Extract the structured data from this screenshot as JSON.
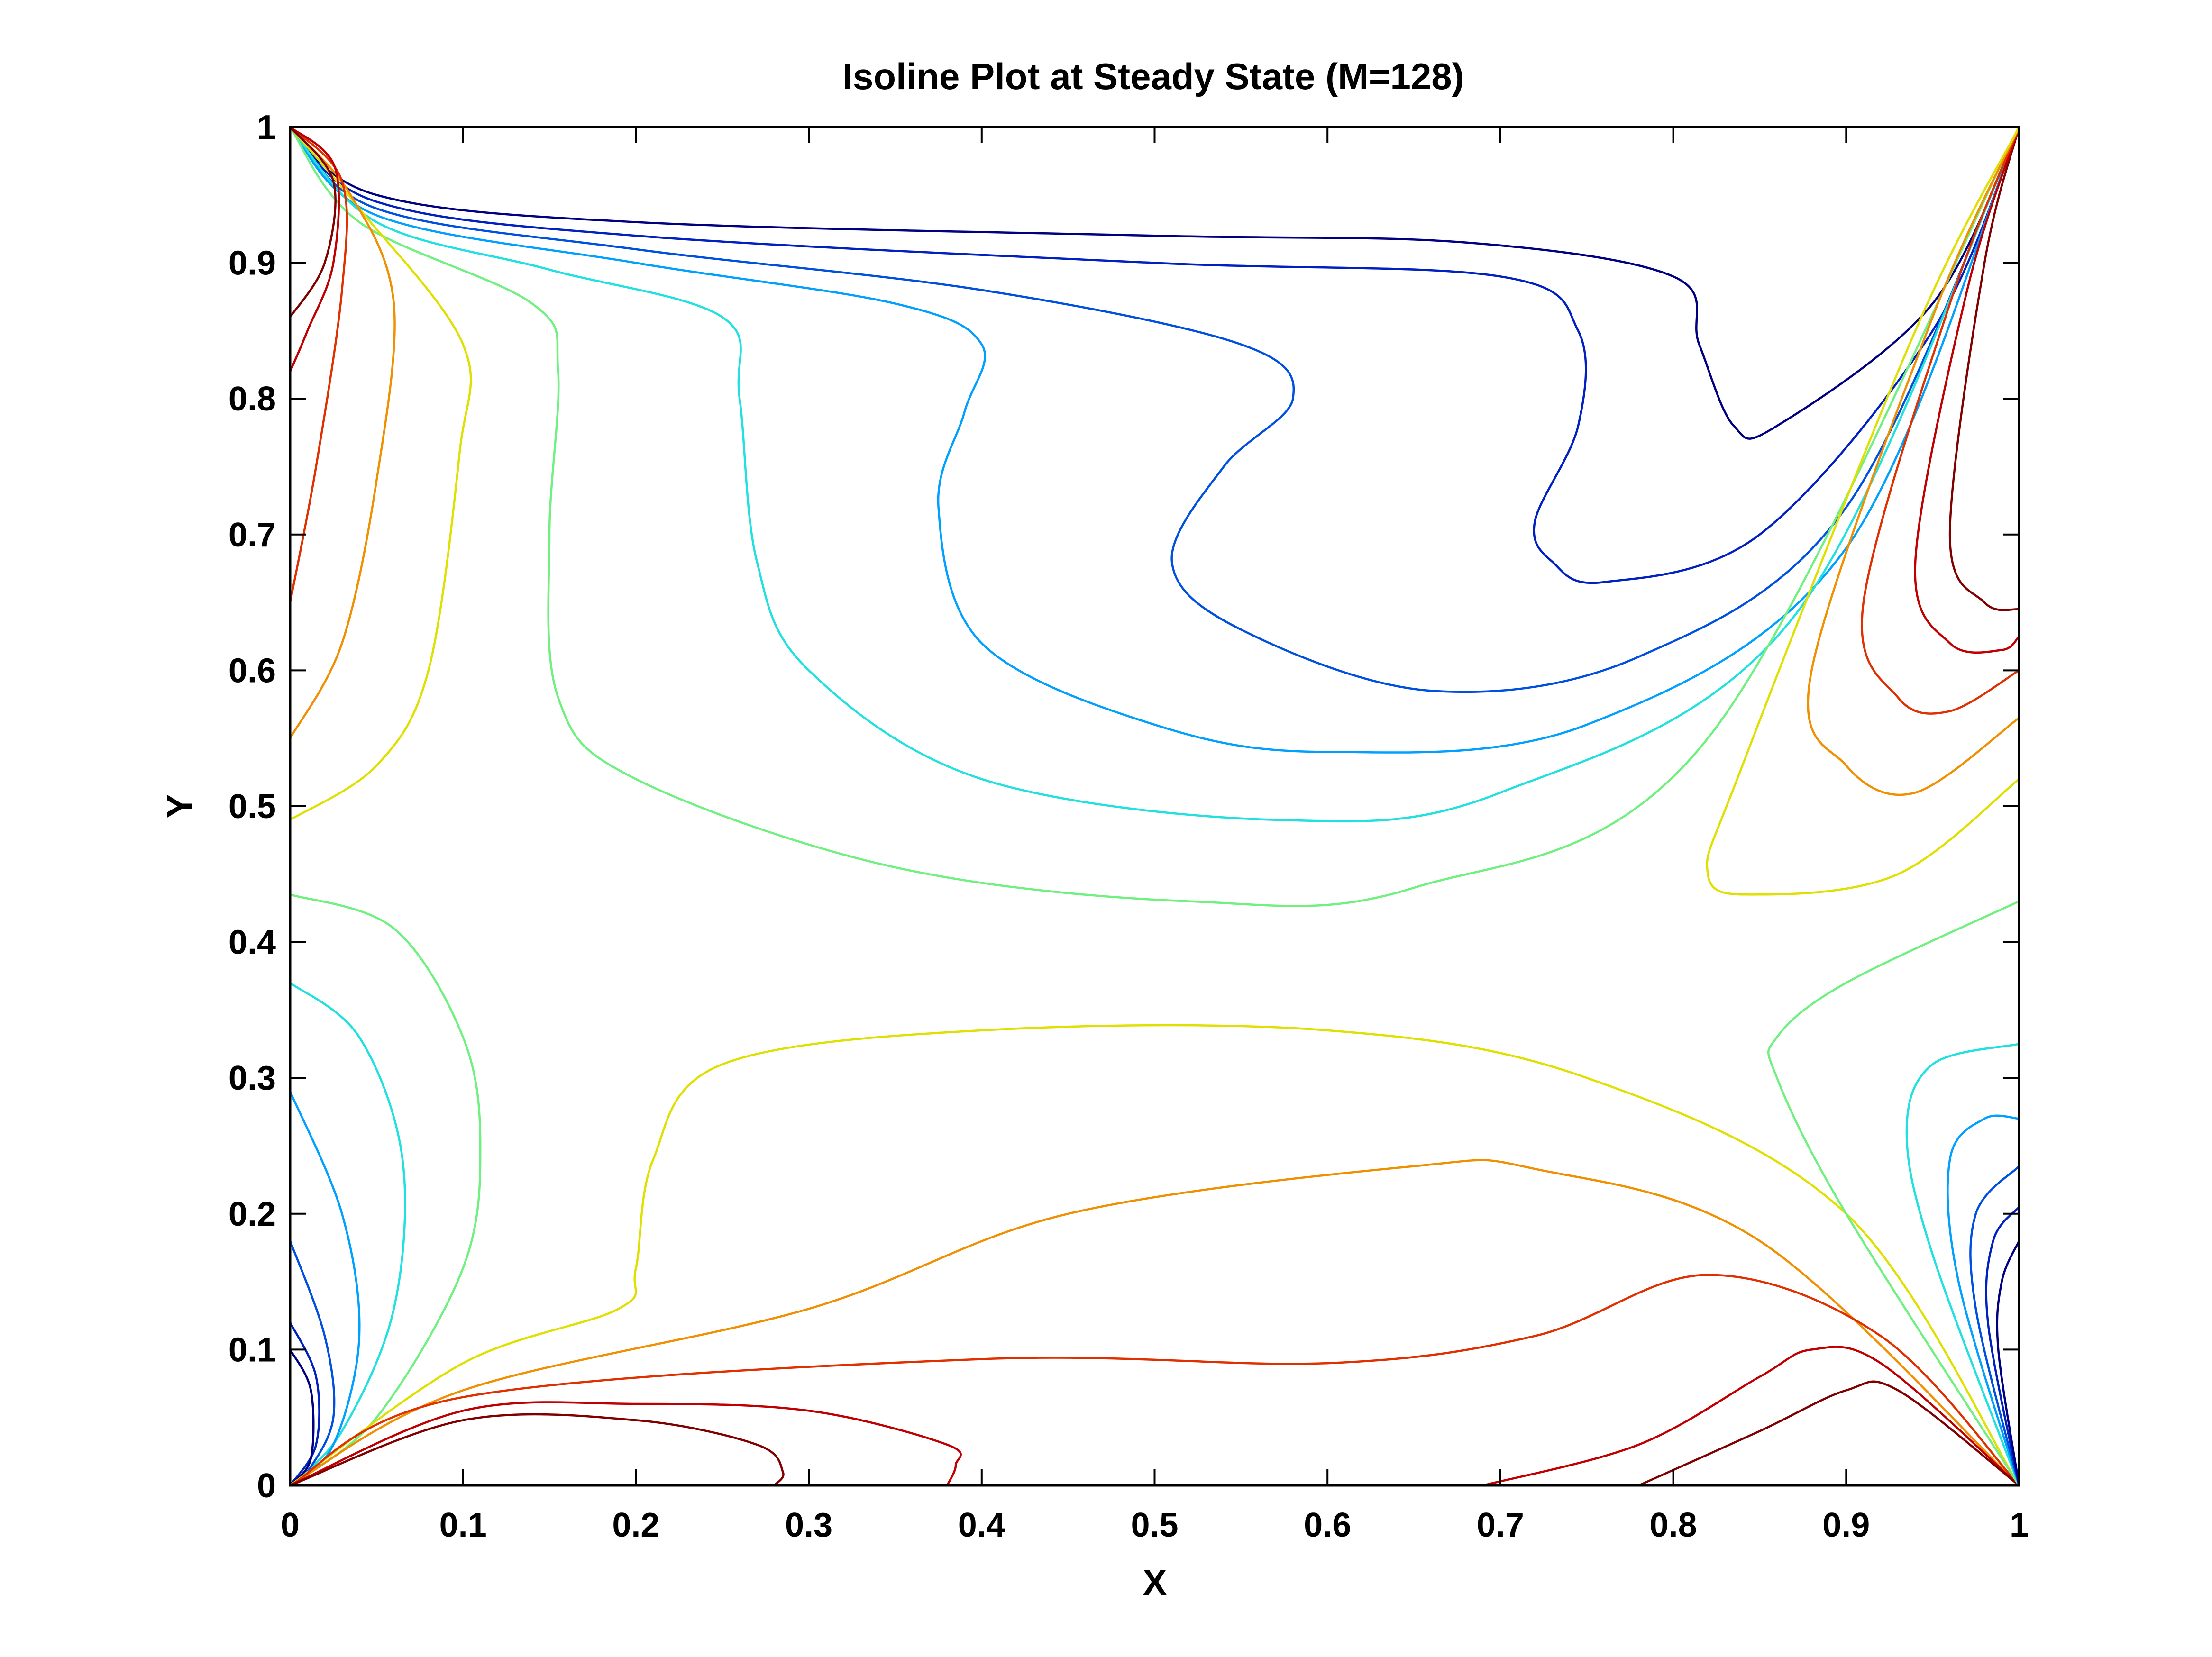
{
  "chart_data": {
    "type": "contour",
    "title": "Isoline Plot at Steady State (M=128)",
    "xlabel": "X",
    "ylabel": "Y",
    "xlim": [
      0,
      1
    ],
    "ylim": [
      0,
      1
    ],
    "xticks": [
      0,
      0.1,
      0.2,
      0.3,
      0.4,
      0.5,
      0.6,
      0.7,
      0.8,
      0.9,
      1
    ],
    "yticks": [
      0,
      0.1,
      0.2,
      0.3,
      0.4,
      0.5,
      0.6,
      0.7,
      0.8,
      0.9,
      1
    ],
    "xtick_labels": [
      "0",
      "0.1",
      "0.2",
      "0.3",
      "0.4",
      "0.5",
      "0.6",
      "0.7",
      "0.8",
      "0.9",
      "1"
    ],
    "ytick_labels": [
      "0",
      "0.1",
      "0.2",
      "0.3",
      "0.4",
      "0.5",
      "0.6",
      "0.7",
      "0.8",
      "0.9",
      "1"
    ],
    "grid": false,
    "colormap": "jet",
    "isolines": [
      {
        "color": "#000080",
        "points": [
          [
            0,
            1
          ],
          [
            0.05,
            0.95
          ],
          [
            0.2,
            0.93
          ],
          [
            0.5,
            0.92
          ],
          [
            0.68,
            0.915
          ],
          [
            0.8,
            0.89
          ],
          [
            0.815,
            0.84
          ],
          [
            0.835,
            0.78
          ],
          [
            0.86,
            0.78
          ],
          [
            0.95,
            0.87
          ],
          [
            1,
            1
          ]
        ]
      },
      {
        "color": "#0020c0",
        "points": [
          [
            0,
            1
          ],
          [
            0.05,
            0.945
          ],
          [
            0.2,
            0.92
          ],
          [
            0.5,
            0.9
          ],
          [
            0.7,
            0.89
          ],
          [
            0.745,
            0.85
          ],
          [
            0.745,
            0.78
          ],
          [
            0.72,
            0.71
          ],
          [
            0.73,
            0.68
          ],
          [
            0.76,
            0.665
          ],
          [
            0.85,
            0.7
          ],
          [
            0.95,
            0.85
          ],
          [
            1,
            1
          ]
        ]
      },
      {
        "color": "#0050e0",
        "points": [
          [
            0,
            1
          ],
          [
            0.05,
            0.94
          ],
          [
            0.2,
            0.91
          ],
          [
            0.4,
            0.88
          ],
          [
            0.55,
            0.84
          ],
          [
            0.58,
            0.8
          ],
          [
            0.54,
            0.75
          ],
          [
            0.51,
            0.68
          ],
          [
            0.55,
            0.63
          ],
          [
            0.66,
            0.585
          ],
          [
            0.78,
            0.61
          ],
          [
            0.9,
            0.72
          ],
          [
            1,
            1
          ]
        ]
      },
      {
        "color": "#00a0ff",
        "points": [
          [
            0,
            1
          ],
          [
            0.05,
            0.935
          ],
          [
            0.2,
            0.9
          ],
          [
            0.35,
            0.87
          ],
          [
            0.4,
            0.84
          ],
          [
            0.39,
            0.79
          ],
          [
            0.375,
            0.72
          ],
          [
            0.4,
            0.62
          ],
          [
            0.5,
            0.56
          ],
          [
            0.6,
            0.54
          ],
          [
            0.75,
            0.56
          ],
          [
            0.9,
            0.69
          ],
          [
            1,
            1
          ]
        ]
      },
      {
        "color": "#20e0e0",
        "points": [
          [
            0,
            1
          ],
          [
            0.05,
            0.93
          ],
          [
            0.15,
            0.895
          ],
          [
            0.25,
            0.86
          ],
          [
            0.26,
            0.8
          ],
          [
            0.27,
            0.68
          ],
          [
            0.3,
            0.6
          ],
          [
            0.4,
            0.52
          ],
          [
            0.57,
            0.49
          ],
          [
            0.7,
            0.51
          ],
          [
            0.87,
            0.64
          ],
          [
            1,
            1
          ]
        ]
      },
      {
        "color": "#70f080",
        "points": [
          [
            0,
            1
          ],
          [
            0.04,
            0.93
          ],
          [
            0.14,
            0.87
          ],
          [
            0.155,
            0.82
          ],
          [
            0.15,
            0.7
          ],
          [
            0.155,
            0.58
          ],
          [
            0.2,
            0.52
          ],
          [
            0.35,
            0.455
          ],
          [
            0.52,
            0.43
          ],
          [
            0.65,
            0.44
          ],
          [
            0.82,
            0.55
          ],
          [
            1,
            1
          ]
        ]
      },
      {
        "color": "#e0e000",
        "points": [
          [
            0,
            1
          ],
          [
            0.04,
            0.94
          ],
          [
            0.1,
            0.84
          ],
          [
            0.098,
            0.76
          ],
          [
            0.08,
            0.6
          ],
          [
            0.05,
            0.53
          ],
          [
            0,
            0.49
          ]
        ]
      },
      {
        "color": "#f09000",
        "points": [
          [
            0,
            1
          ],
          [
            0.035,
            0.95
          ],
          [
            0.06,
            0.87
          ],
          [
            0.05,
            0.74
          ],
          [
            0.03,
            0.62
          ],
          [
            0,
            0.55
          ]
        ]
      },
      {
        "color": "#e03000",
        "points": [
          [
            0,
            1
          ],
          [
            0.03,
            0.96
          ],
          [
            0.03,
            0.88
          ],
          [
            0.015,
            0.75
          ],
          [
            0,
            0.65
          ]
        ]
      },
      {
        "color": "#c00000",
        "points": [
          [
            0,
            1
          ],
          [
            0.026,
            0.97
          ],
          [
            0.025,
            0.9
          ],
          [
            0.01,
            0.85
          ],
          [
            0,
            0.82
          ]
        ]
      },
      {
        "color": "#800000",
        "points": [
          [
            0,
            1
          ],
          [
            0.025,
            0.96
          ],
          [
            0.02,
            0.9
          ],
          [
            0,
            0.86
          ]
        ]
      },
      {
        "color": "#800000",
        "points": [
          [
            1,
            1
          ],
          [
            0.98,
            0.9
          ],
          [
            0.96,
            0.7
          ],
          [
            0.98,
            0.65
          ],
          [
            1,
            0.645
          ]
        ]
      },
      {
        "color": "#c00000",
        "points": [
          [
            1,
            1
          ],
          [
            0.97,
            0.88
          ],
          [
            0.94,
            0.68
          ],
          [
            0.96,
            0.62
          ],
          [
            0.99,
            0.615
          ],
          [
            1,
            0.625
          ]
        ]
      },
      {
        "color": "#e03000",
        "points": [
          [
            1,
            1
          ],
          [
            0.96,
            0.87
          ],
          [
            0.91,
            0.65
          ],
          [
            0.93,
            0.58
          ],
          [
            0.96,
            0.57
          ],
          [
            1,
            0.6
          ]
        ]
      },
      {
        "color": "#f09000",
        "points": [
          [
            1,
            1
          ],
          [
            0.95,
            0.86
          ],
          [
            0.88,
            0.6
          ],
          [
            0.9,
            0.53
          ],
          [
            0.94,
            0.51
          ],
          [
            1,
            0.565
          ]
        ]
      },
      {
        "color": "#e0e000",
        "points": [
          [
            1,
            1
          ],
          [
            0.94,
            0.85
          ],
          [
            0.84,
            0.53
          ],
          [
            0.82,
            0.45
          ],
          [
            0.85,
            0.435
          ],
          [
            0.93,
            0.45
          ],
          [
            1,
            0.52
          ]
        ]
      },
      {
        "color": "#70f080",
        "points": [
          [
            0,
            0.435
          ],
          [
            0.06,
            0.41
          ],
          [
            0.1,
            0.33
          ],
          [
            0.11,
            0.25
          ],
          [
            0.1,
            0.16
          ],
          [
            0.05,
            0.05
          ],
          [
            0,
            0
          ]
        ]
      },
      {
        "color": "#20e0e0",
        "points": [
          [
            0,
            0.37
          ],
          [
            0.04,
            0.33
          ],
          [
            0.065,
            0.24
          ],
          [
            0.06,
            0.13
          ],
          [
            0.03,
            0.04
          ],
          [
            0,
            0
          ]
        ]
      },
      {
        "color": "#00a0ff",
        "points": [
          [
            0,
            0.29
          ],
          [
            0.03,
            0.2
          ],
          [
            0.04,
            0.11
          ],
          [
            0.025,
            0.03
          ],
          [
            0,
            0
          ]
        ]
      },
      {
        "color": "#0050e0",
        "points": [
          [
            0,
            0.18
          ],
          [
            0.02,
            0.11
          ],
          [
            0.025,
            0.05
          ],
          [
            0.01,
            0.01
          ],
          [
            0,
            0
          ]
        ]
      },
      {
        "color": "#0020c0",
        "points": [
          [
            0,
            0.12
          ],
          [
            0.015,
            0.08
          ],
          [
            0.015,
            0.03
          ],
          [
            0,
            0
          ]
        ]
      },
      {
        "color": "#000080",
        "points": [
          [
            0,
            0.1
          ],
          [
            0.012,
            0.07
          ],
          [
            0.012,
            0.02
          ],
          [
            0,
            0
          ]
        ]
      },
      {
        "color": "#e0e000",
        "points": [
          [
            0,
            0
          ],
          [
            0.1,
            0.09
          ],
          [
            0.19,
            0.13
          ],
          [
            0.2,
            0.16
          ],
          [
            0.21,
            0.24
          ],
          [
            0.25,
            0.31
          ],
          [
            0.4,
            0.335
          ],
          [
            0.6,
            0.335
          ],
          [
            0.75,
            0.3
          ],
          [
            0.9,
            0.2
          ],
          [
            1,
            0
          ]
        ]
      },
      {
        "color": "#f09000",
        "points": [
          [
            0,
            0
          ],
          [
            0.1,
            0.07
          ],
          [
            0.3,
            0.13
          ],
          [
            0.45,
            0.2
          ],
          [
            0.65,
            0.235
          ],
          [
            0.72,
            0.233
          ],
          [
            0.85,
            0.18
          ],
          [
            1,
            0
          ]
        ]
      },
      {
        "color": "#e03000",
        "points": [
          [
            0,
            0
          ],
          [
            0.1,
            0.065
          ],
          [
            0.4,
            0.093
          ],
          [
            0.6,
            0.09
          ],
          [
            0.72,
            0.11
          ],
          [
            0.82,
            0.155
          ],
          [
            0.92,
            0.11
          ],
          [
            1,
            0
          ]
        ]
      },
      {
        "color": "#c00000",
        "points": [
          [
            0,
            0
          ],
          [
            0.1,
            0.055
          ],
          [
            0.2,
            0.06
          ],
          [
            0.3,
            0.055
          ],
          [
            0.38,
            0.03
          ],
          [
            0.385,
            0.015
          ],
          [
            0.38,
            0
          ]
        ]
      },
      {
        "color": "#800000",
        "points": [
          [
            0,
            0
          ],
          [
            0.1,
            0.048
          ],
          [
            0.2,
            0.048
          ],
          [
            0.27,
            0.03
          ],
          [
            0.285,
            0.01
          ],
          [
            0.28,
            0
          ]
        ]
      },
      {
        "color": "#c00000",
        "points": [
          [
            0.69,
            0
          ],
          [
            0.78,
            0.03
          ],
          [
            0.85,
            0.08
          ],
          [
            0.88,
            0.1
          ],
          [
            0.92,
            0.09
          ],
          [
            1,
            0
          ]
        ]
      },
      {
        "color": "#800000",
        "points": [
          [
            0.78,
            0
          ],
          [
            0.85,
            0.04
          ],
          [
            0.9,
            0.07
          ],
          [
            0.93,
            0.07
          ],
          [
            1,
            0
          ]
        ]
      },
      {
        "color": "#70f080",
        "points": [
          [
            1,
            0
          ],
          [
            0.9,
            0.2
          ],
          [
            0.86,
            0.3
          ],
          [
            0.86,
            0.33
          ],
          [
            0.9,
            0.37
          ],
          [
            1,
            0.43
          ]
        ]
      },
      {
        "color": "#20e0e0",
        "points": [
          [
            1,
            0
          ],
          [
            0.95,
            0.17
          ],
          [
            0.935,
            0.26
          ],
          [
            0.95,
            0.31
          ],
          [
            1,
            0.325
          ]
        ]
      },
      {
        "color": "#00a0ff",
        "points": [
          [
            1,
            0
          ],
          [
            0.965,
            0.15
          ],
          [
            0.96,
            0.24
          ],
          [
            0.98,
            0.27
          ],
          [
            1,
            0.27
          ]
        ]
      },
      {
        "color": "#0050e0",
        "points": [
          [
            1,
            0
          ],
          [
            0.975,
            0.13
          ],
          [
            0.975,
            0.2
          ],
          [
            1,
            0.235
          ]
        ]
      },
      {
        "color": "#0020c0",
        "points": [
          [
            1,
            0
          ],
          [
            0.982,
            0.12
          ],
          [
            0.985,
            0.18
          ],
          [
            1,
            0.205
          ]
        ]
      },
      {
        "color": "#000080",
        "points": [
          [
            1,
            0
          ],
          [
            0.988,
            0.1
          ],
          [
            0.99,
            0.15
          ],
          [
            1,
            0.18
          ]
        ]
      }
    ]
  }
}
